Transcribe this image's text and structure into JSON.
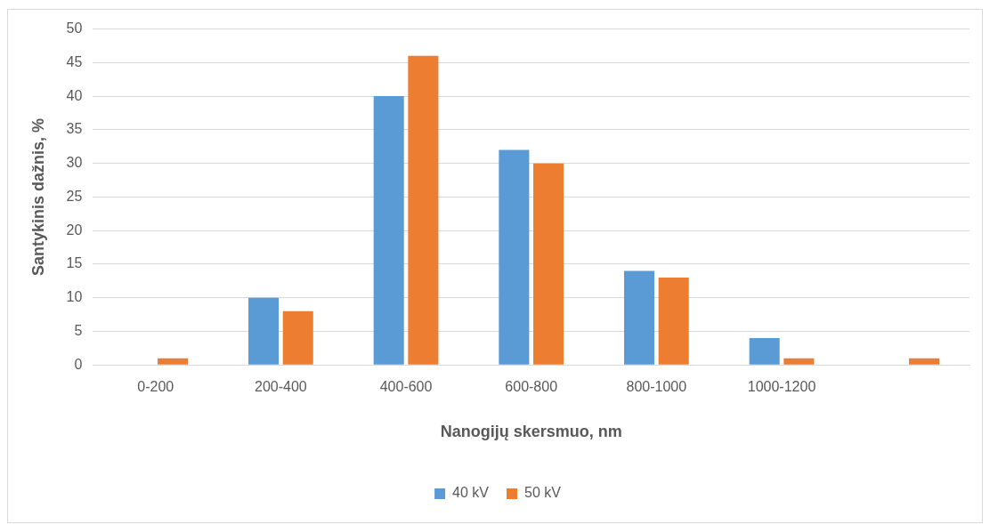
{
  "chart_data": {
    "type": "bar",
    "xlabel": "Nanogijų skersmuo, nm",
    "ylabel": "Santykinis dažnis, %",
    "categories": [
      "0-200",
      "200-400",
      "400-600",
      "600-800",
      "800-1000",
      "1000-1200",
      null
    ],
    "series": [
      {
        "name": "40 kV",
        "color": "#5b9bd5",
        "values": [
          0,
          10,
          40,
          32,
          14,
          4,
          0
        ]
      },
      {
        "name": "50 kV",
        "color": "#ed7d31",
        "values": [
          1,
          8,
          46,
          30,
          13,
          1,
          1
        ]
      }
    ],
    "ylim": [
      0,
      50
    ],
    "yticks": [
      0,
      5,
      10,
      15,
      20,
      25,
      30,
      35,
      40,
      45,
      50
    ],
    "grid": "y",
    "legend": "bottom"
  }
}
